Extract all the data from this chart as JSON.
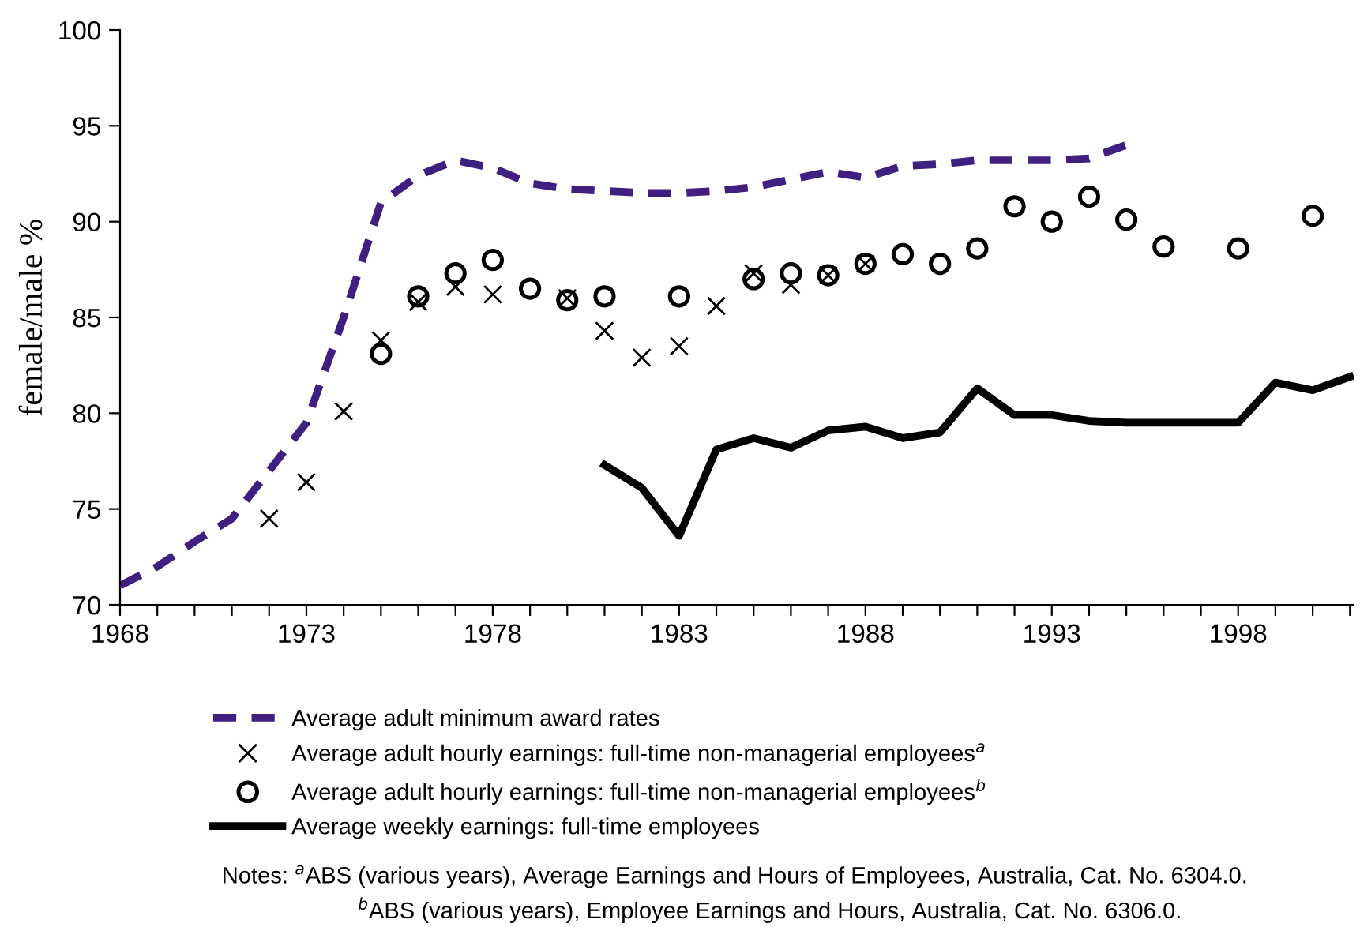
{
  "chart_data": {
    "type": "line",
    "ylabel": "female/male %",
    "xlim": [
      1968,
      2001.1
    ],
    "ylim": [
      70,
      100
    ],
    "xticks": [
      1968,
      {
        "value": 1969,
        "label": null
      },
      {
        "value": 1970,
        "label": null
      },
      {
        "value": 1971,
        "label": null
      },
      {
        "value": 1972,
        "label": null
      },
      1973,
      {
        "value": 1974,
        "label": null
      },
      {
        "value": 1975,
        "label": null
      },
      {
        "value": 1976,
        "label": null
      },
      {
        "value": 1977,
        "label": null
      },
      1978,
      {
        "value": 1979,
        "label": null
      },
      {
        "value": 1980,
        "label": null
      },
      {
        "value": 1981,
        "label": null
      },
      {
        "value": 1982,
        "label": null
      },
      1983,
      {
        "value": 1984,
        "label": null
      },
      {
        "value": 1985,
        "label": null
      },
      {
        "value": 1986,
        "label": null
      },
      {
        "value": 1987,
        "label": null
      },
      1988,
      {
        "value": 1989,
        "label": null
      },
      {
        "value": 1990,
        "label": null
      },
      {
        "value": 1991,
        "label": null
      },
      {
        "value": 1992,
        "label": null
      },
      1993,
      {
        "value": 1994,
        "label": null
      },
      {
        "value": 1995,
        "label": null
      },
      {
        "value": 1996,
        "label": null
      },
      {
        "value": 1997,
        "label": null
      },
      1998,
      {
        "value": 1999,
        "label": null
      },
      {
        "value": 2000,
        "label": null
      },
      {
        "value": 2001,
        "label": null
      }
    ],
    "yticks": [
      70,
      75,
      80,
      85,
      90,
      95,
      100
    ],
    "grid": false,
    "legend": "bottom",
    "series": [
      {
        "name": "Average adult minimum award rates",
        "line_style": "dashed",
        "marker": "none",
        "color": "#3f1f80",
        "x": [
          1968,
          1969,
          1970,
          1971,
          1972,
          1973,
          1974,
          1975,
          1976,
          1977,
          1978,
          1979,
          1980,
          1981,
          1982,
          1983,
          1984,
          1985,
          1986,
          1987,
          1988,
          1989,
          1990,
          1991,
          1992,
          1993,
          1994,
          1995
        ],
        "values": [
          71.0,
          72.0,
          73.3,
          74.5,
          77.0,
          79.5,
          85.0,
          91.0,
          92.4,
          93.2,
          92.8,
          92.0,
          91.7,
          91.6,
          91.5,
          91.5,
          91.6,
          91.8,
          92.2,
          92.6,
          92.3,
          92.9,
          93.0,
          93.2,
          93.2,
          93.2,
          93.3,
          94.0
        ]
      },
      {
        "name": "Average adult hourly earnings: full-time non-managerial employees$^{a}$",
        "type": "scatter",
        "marker": "cross",
        "color": "#000000",
        "x": [
          1972,
          1973,
          1974,
          1975,
          1976,
          1977,
          1978,
          1980,
          1981,
          1982,
          1983,
          1984,
          1985,
          1986,
          1987,
          1988
        ],
        "values": [
          74.5,
          76.4,
          80.1,
          83.8,
          85.8,
          86.6,
          86.2,
          86.0,
          84.3,
          82.9,
          83.5,
          85.6,
          87.3,
          86.7,
          87.2,
          87.8
        ]
      },
      {
        "name": "Average adult hourly earnings: full-time non-managerial employees$^{b}$",
        "type": "scatter",
        "marker": "circle",
        "color": "#000000",
        "x": [
          1975,
          1976,
          1977,
          1978,
          1979,
          1980,
          1981,
          1983,
          1985,
          1986,
          1987,
          1988,
          1989,
          1990,
          1991,
          1992,
          1993,
          1994,
          1995,
          1996,
          1998,
          2000
        ],
        "values": [
          83.1,
          86.1,
          87.3,
          88.0,
          86.5,
          85.9,
          86.1,
          86.1,
          87.0,
          87.3,
          87.2,
          87.8,
          88.3,
          87.8,
          88.6,
          90.8,
          90.0,
          91.3,
          90.1,
          88.7,
          88.6,
          90.3
        ]
      },
      {
        "name": "Average weekly earnings: full-time employees",
        "line_style": "solid",
        "marker": "none",
        "color": "#000000",
        "x": [
          1981,
          1982,
          1983,
          1984,
          1985,
          1986,
          1987,
          1988,
          1989,
          1990,
          1991,
          1992,
          1993,
          1994,
          1995,
          1996,
          1997,
          1998,
          1999,
          2000,
          2001
        ],
        "values": [
          77.3,
          76.1,
          73.6,
          78.1,
          78.7,
          78.2,
          79.1,
          79.3,
          78.7,
          79.0,
          81.3,
          79.9,
          79.9,
          79.6,
          79.5,
          79.5,
          79.5,
          79.5,
          81.6,
          81.2,
          81.9
        ]
      }
    ],
    "annotations": [
      "Notes: $^{a}$ABS (various years), Average Earnings and Hours of Employees, Australia, Cat. No. 6304.0.",
      "$^{b}$ABS (various years), Employee Earnings and Hours, Australia, Cat. No. 6306.0."
    ]
  }
}
